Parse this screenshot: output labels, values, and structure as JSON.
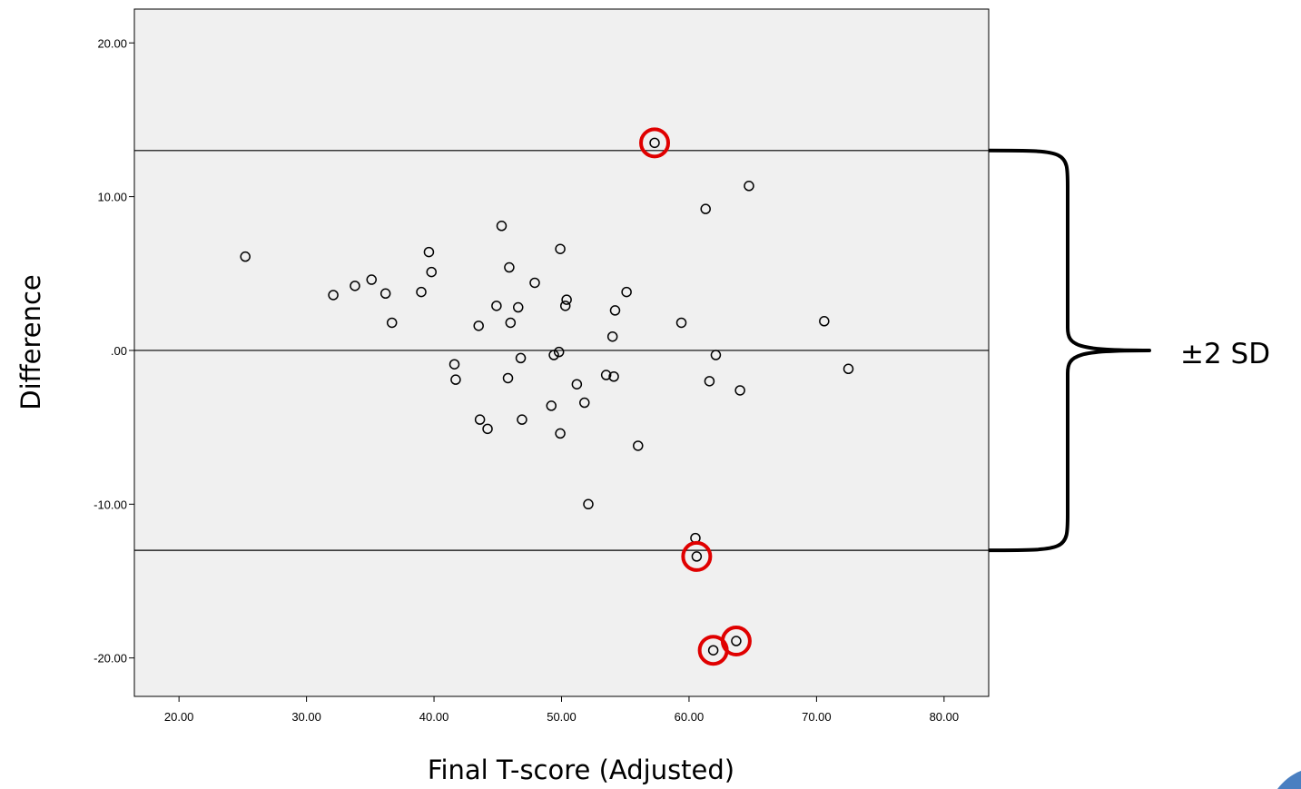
{
  "chart_data": {
    "type": "scatter",
    "xlabel": "Final T-score (Adjusted)",
    "ylabel": "Difference",
    "xlim": [
      16.5,
      83.5
    ],
    "ylim": [
      -22.5,
      22.2
    ],
    "x_ticks": [
      {
        "value": 20,
        "label": "20.00"
      },
      {
        "value": 30,
        "label": "30.00"
      },
      {
        "value": 40,
        "label": "40.00"
      },
      {
        "value": 50,
        "label": "50.00"
      },
      {
        "value": 60,
        "label": "60.00"
      },
      {
        "value": 70,
        "label": "70.00"
      },
      {
        "value": 80,
        "label": "80.00"
      }
    ],
    "y_ticks": [
      {
        "value": 20,
        "label": "20.00"
      },
      {
        "value": 10,
        "label": "10.00"
      },
      {
        "value": 0,
        "label": ".00"
      },
      {
        "value": -10,
        "label": "-10.00"
      },
      {
        "value": -20,
        "label": "-20.00"
      }
    ],
    "reference_lines": [
      13.0,
      0.0,
      -13.0
    ],
    "bracket": {
      "label": "±2 SD",
      "from": 13.0,
      "to": -13.0
    },
    "grid": false,
    "plot_background": "#f0f0f0",
    "point_color": "#000000",
    "highlight_color": "#e00000",
    "points": [
      {
        "x": 25.2,
        "y": 6.1
      },
      {
        "x": 32.1,
        "y": 3.6
      },
      {
        "x": 33.8,
        "y": 4.2
      },
      {
        "x": 35.1,
        "y": 4.6
      },
      {
        "x": 36.2,
        "y": 3.7
      },
      {
        "x": 36.7,
        "y": 1.8
      },
      {
        "x": 39.0,
        "y": 3.8
      },
      {
        "x": 39.6,
        "y": 6.4
      },
      {
        "x": 39.8,
        "y": 5.1
      },
      {
        "x": 41.6,
        "y": -0.9
      },
      {
        "x": 41.7,
        "y": -1.9
      },
      {
        "x": 43.5,
        "y": 1.6
      },
      {
        "x": 43.6,
        "y": -4.5
      },
      {
        "x": 44.2,
        "y": -5.1
      },
      {
        "x": 44.9,
        "y": 2.9
      },
      {
        "x": 45.3,
        "y": 8.1
      },
      {
        "x": 45.8,
        "y": -1.8
      },
      {
        "x": 45.9,
        "y": 5.4
      },
      {
        "x": 46.0,
        "y": 1.8
      },
      {
        "x": 46.6,
        "y": 2.8
      },
      {
        "x": 46.8,
        "y": -0.5
      },
      {
        "x": 46.9,
        "y": -4.5
      },
      {
        "x": 47.9,
        "y": 4.4
      },
      {
        "x": 49.2,
        "y": -3.6
      },
      {
        "x": 49.4,
        "y": -0.3
      },
      {
        "x": 49.8,
        "y": -0.1
      },
      {
        "x": 49.9,
        "y": 6.6
      },
      {
        "x": 49.9,
        "y": -5.4
      },
      {
        "x": 50.3,
        "y": 2.9
      },
      {
        "x": 50.4,
        "y": 3.3
      },
      {
        "x": 51.2,
        "y": -2.2
      },
      {
        "x": 51.8,
        "y": -3.4
      },
      {
        "x": 52.1,
        "y": -10.0
      },
      {
        "x": 53.5,
        "y": -1.6
      },
      {
        "x": 54.0,
        "y": 0.9
      },
      {
        "x": 54.1,
        "y": -1.7
      },
      {
        "x": 54.2,
        "y": 2.6
      },
      {
        "x": 55.1,
        "y": 3.8
      },
      {
        "x": 56.0,
        "y": -6.2
      },
      {
        "x": 57.3,
        "y": 13.5,
        "highlight": true
      },
      {
        "x": 59.4,
        "y": 1.8
      },
      {
        "x": 60.5,
        "y": -12.2
      },
      {
        "x": 60.6,
        "y": -13.4,
        "highlight": true
      },
      {
        "x": 61.3,
        "y": 9.2
      },
      {
        "x": 61.6,
        "y": -2.0
      },
      {
        "x": 61.9,
        "y": -19.5,
        "highlight": true
      },
      {
        "x": 62.1,
        "y": -0.3
      },
      {
        "x": 63.7,
        "y": -18.9,
        "highlight": true
      },
      {
        "x": 64.0,
        "y": -2.6
      },
      {
        "x": 64.7,
        "y": 10.7
      },
      {
        "x": 70.6,
        "y": 1.9
      },
      {
        "x": 72.5,
        "y": -1.2
      }
    ]
  }
}
